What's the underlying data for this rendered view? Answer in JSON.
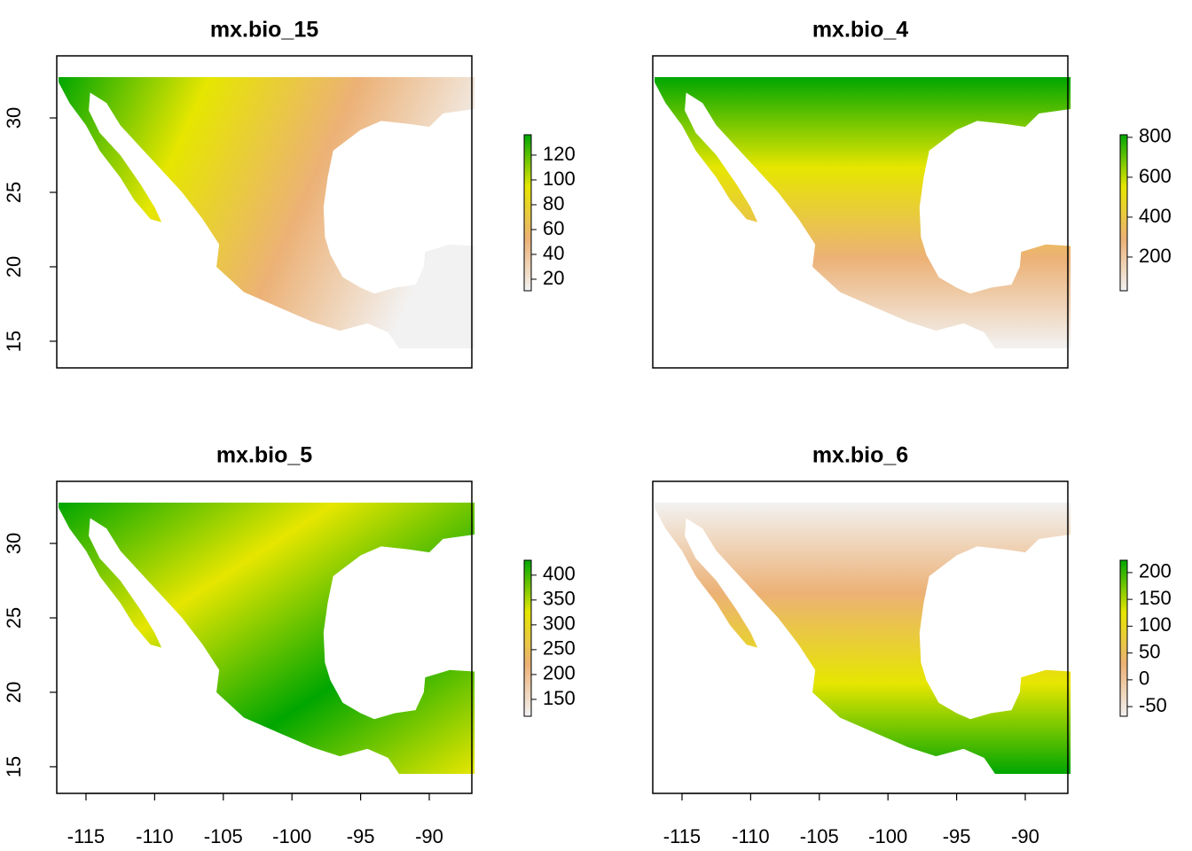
{
  "chart_data": [
    {
      "type": "raster",
      "title": "mx.bio_15",
      "xlim": [
        -117.13,
        -86.9
      ],
      "ylim": [
        13.21,
        34.17
      ],
      "yticks": [
        15,
        20,
        25,
        30
      ],
      "zlim": [
        10.7,
        136.4
      ],
      "zticks": [
        20,
        40,
        60,
        80,
        100,
        120
      ],
      "colors": [
        "#f2f2f2",
        "#ecb176",
        "#e6e600",
        "#00a600"
      ]
    },
    {
      "type": "raster",
      "title": "mx.bio_4",
      "xlim": [
        -117.13,
        -86.9
      ],
      "ylim": [
        13.21,
        34.17
      ],
      "zlim": [
        31,
        813
      ],
      "zticks": [
        200,
        400,
        600,
        800
      ],
      "colors": [
        "#f2f2f2",
        "#ecb176",
        "#e6e600",
        "#00a600"
      ]
    },
    {
      "type": "raster",
      "title": "mx.bio_5",
      "xlim": [
        -117.13,
        -86.9
      ],
      "ylim": [
        13.21,
        34.17
      ],
      "xticks": [
        -115,
        -110,
        -105,
        -100,
        -95,
        -90
      ],
      "yticks": [
        15,
        20,
        25,
        30
      ],
      "zlim": [
        116,
        430
      ],
      "zticks": [
        150,
        200,
        250,
        300,
        350,
        400
      ],
      "colors": [
        "#f2f2f2",
        "#ecb176",
        "#e6e600",
        "#00a600"
      ]
    },
    {
      "type": "raster",
      "title": "mx.bio_6",
      "xlim": [
        -117.13,
        -86.9
      ],
      "ylim": [
        13.21,
        34.17
      ],
      "xticks": [
        -115,
        -110,
        -105,
        -100,
        -95,
        -90
      ],
      "zlim": [
        -68,
        223
      ],
      "zticks": [
        -50,
        0,
        50,
        100,
        150,
        200
      ],
      "colors": [
        "#f2f2f2",
        "#ecb176",
        "#e6e600",
        "#00a600"
      ]
    }
  ]
}
